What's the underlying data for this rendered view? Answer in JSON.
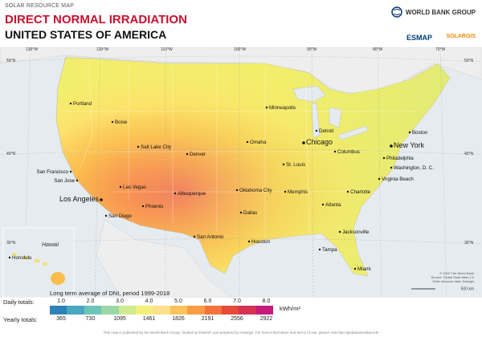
{
  "header": {
    "small_title": "SOLAR RESOURCE MAP",
    "main_title": "DIRECT NORMAL IRRADIATION",
    "country": "UNITED STATES OF AMERICA"
  },
  "logos": {
    "world_bank": "WORLD BANK GROUP",
    "esmap": "ESMAP",
    "solargis": "SOLARGIS"
  },
  "graticule": {
    "top_labels": [
      "130°W",
      "120°W",
      "110°W",
      "100°W",
      "90°W",
      "80°W",
      "70°W"
    ],
    "left_labels": [
      "50°N",
      "40°N",
      "30°N"
    ],
    "right_labels": [
      "50°N",
      "40°N",
      "30°N"
    ]
  },
  "cities": [
    {
      "name": "Portland"
    },
    {
      "name": "Boise"
    },
    {
      "name": "Salt Lake City"
    },
    {
      "name": "Denver"
    },
    {
      "name": "San Francisco"
    },
    {
      "name": "San Jose"
    },
    {
      "name": "Las Vegas"
    },
    {
      "name": "Los Angeles"
    },
    {
      "name": "San Diego"
    },
    {
      "name": "Phoenix"
    },
    {
      "name": "Albuquerque"
    },
    {
      "name": "Minneapolis"
    },
    {
      "name": "Omaha"
    },
    {
      "name": "Chicago"
    },
    {
      "name": "Detroit"
    },
    {
      "name": "Columbus"
    },
    {
      "name": "St. Louis"
    },
    {
      "name": "Oklahoma City"
    },
    {
      "name": "Dallas"
    },
    {
      "name": "San Antonio"
    },
    {
      "name": "Houston"
    },
    {
      "name": "Memphis"
    },
    {
      "name": "Atlanta"
    },
    {
      "name": "Charlotte"
    },
    {
      "name": "Jacksonville"
    },
    {
      "name": "Tampa"
    },
    {
      "name": "Miami"
    },
    {
      "name": "Washington, D. C."
    },
    {
      "name": "Philadelphia"
    },
    {
      "name": "New York"
    },
    {
      "name": "Boston"
    },
    {
      "name": "Virginia Beach"
    },
    {
      "name": "Honolulu"
    }
  ],
  "hawaii_label": "Hawaii",
  "credits": [
    "© 2019 The World Bank",
    "Source: Global Solar Atlas 2.0",
    "Solar resource data: Solargis"
  ],
  "scale_label": "500 km",
  "legend": {
    "title": "Long term average of DNI, period 1999-2018",
    "daily_label": "Daily totals:",
    "yearly_label": "Yearly totals:",
    "unit": "kWh/m²",
    "daily_ticks": [
      "1.0",
      "2.0",
      "3.0",
      "4.0",
      "5.0",
      "6.0",
      "7.0",
      "8.0"
    ],
    "yearly_ticks": [
      "365",
      "730",
      "1095",
      "1461",
      "1826",
      "2191",
      "2556",
      "2922"
    ],
    "colors": [
      "#2b83ba",
      "#4aa7c0",
      "#6bc5b9",
      "#9cd7a5",
      "#cfeb8f",
      "#f2f27a",
      "#fee08b",
      "#fdc25a",
      "#f99d45",
      "#f4733b",
      "#e84a3a",
      "#d73256",
      "#c51b7d"
    ]
  },
  "footer": "This map is published by the World Bank Group, funded by ESMAP, and prepared by Solargis. For more information and terms of use, please visit http://globalsolaratlas.info"
}
